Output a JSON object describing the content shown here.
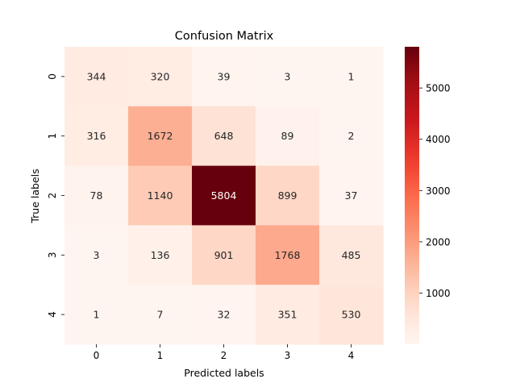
{
  "chart_data": {
    "type": "heatmap",
    "title": "Confusion Matrix",
    "xlabel": "Predicted labels",
    "ylabel": "True labels",
    "x_categories": [
      "0",
      "1",
      "2",
      "3",
      "4"
    ],
    "y_categories": [
      "0",
      "1",
      "2",
      "3",
      "4"
    ],
    "values": [
      [
        344,
        320,
        39,
        3,
        1
      ],
      [
        316,
        1672,
        648,
        89,
        2
      ],
      [
        78,
        1140,
        5804,
        899,
        37
      ],
      [
        3,
        136,
        901,
        1768,
        485
      ],
      [
        1,
        7,
        32,
        351,
        530
      ]
    ],
    "colormap": "Reds",
    "color_range": [
      1,
      5804
    ],
    "colorbar_ticks": [
      "1000",
      "2000",
      "3000",
      "4000",
      "5000"
    ],
    "colorbar_tick_values": [
      1000,
      2000,
      3000,
      4000,
      5000
    ],
    "annot_colors": {
      "dark": "#262626",
      "light": "#ffffff"
    }
  }
}
